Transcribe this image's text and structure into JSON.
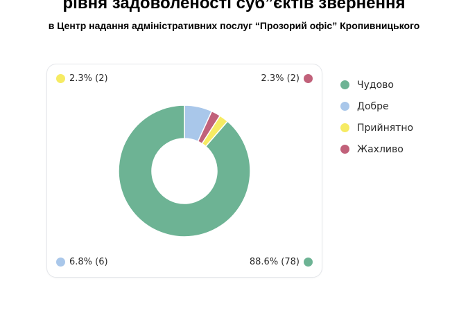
{
  "header": {
    "title": "рівня задоволеності суб”єктів звернення",
    "subtitle": "в Центр надання адміністративних послуг “Прозорий офіс” Кропивницького"
  },
  "chart_data": {
    "type": "pie",
    "donut": true,
    "categories": [
      "Чудово",
      "Добре",
      "Прийнятно",
      "Жахливо"
    ],
    "values": [
      78,
      6,
      2,
      2
    ],
    "percents": [
      88.6,
      6.8,
      2.3,
      2.3
    ],
    "colors": [
      "#6db394",
      "#a9c7ea",
      "#f6eb63",
      "#c1617a"
    ],
    "callouts": [
      {
        "label": "2.3% (2)",
        "series_index": 2,
        "corner": "top-left"
      },
      {
        "label": "2.3% (2)",
        "series_index": 3,
        "corner": "top-right"
      },
      {
        "label": "6.8% (6)",
        "series_index": 1,
        "corner": "bottom-left"
      },
      {
        "label": "88.6% (78)",
        "series_index": 0,
        "corner": "bottom-right"
      }
    ],
    "legend_position": "right"
  }
}
